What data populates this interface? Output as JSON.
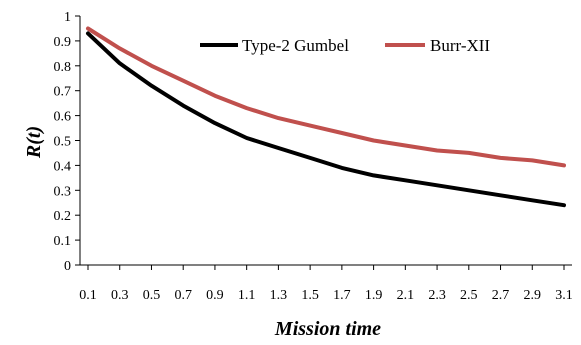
{
  "chart_data": {
    "type": "line",
    "title": "",
    "xlabel": "Mission time",
    "ylabel": "R(t)",
    "x": [
      0.1,
      0.3,
      0.5,
      0.7,
      0.9,
      1.1,
      1.3,
      1.5,
      1.7,
      1.9,
      2.1,
      2.3,
      2.5,
      2.7,
      2.9,
      3.1
    ],
    "x_tick_labels": [
      "0.1",
      "0.3",
      "0.5",
      "0.7",
      "0.9",
      "1.1",
      "1.3",
      "1.5",
      "1.7",
      "1.9",
      "2.1",
      "2.3",
      "2.5",
      "2.7",
      "2.9",
      "3.1"
    ],
    "y_tick_labels": [
      "0",
      "0.1",
      "0.2",
      "0.3",
      "0.4",
      "0.5",
      "0.6",
      "0.7",
      "0.8",
      "0.9",
      "1"
    ],
    "ylim": [
      0,
      1
    ],
    "grid": false,
    "legend_position": "top-right",
    "series": [
      {
        "name": "Type-2 Gumbel",
        "color": "#000000",
        "values": [
          0.93,
          0.81,
          0.72,
          0.64,
          0.57,
          0.51,
          0.47,
          0.43,
          0.39,
          0.36,
          0.34,
          0.32,
          0.3,
          0.28,
          0.26,
          0.24
        ]
      },
      {
        "name": "Burr-XII",
        "color": "#c0504d",
        "values": [
          0.95,
          0.87,
          0.8,
          0.74,
          0.68,
          0.63,
          0.59,
          0.56,
          0.53,
          0.5,
          0.48,
          0.46,
          0.45,
          0.43,
          0.42,
          0.4
        ]
      }
    ]
  }
}
